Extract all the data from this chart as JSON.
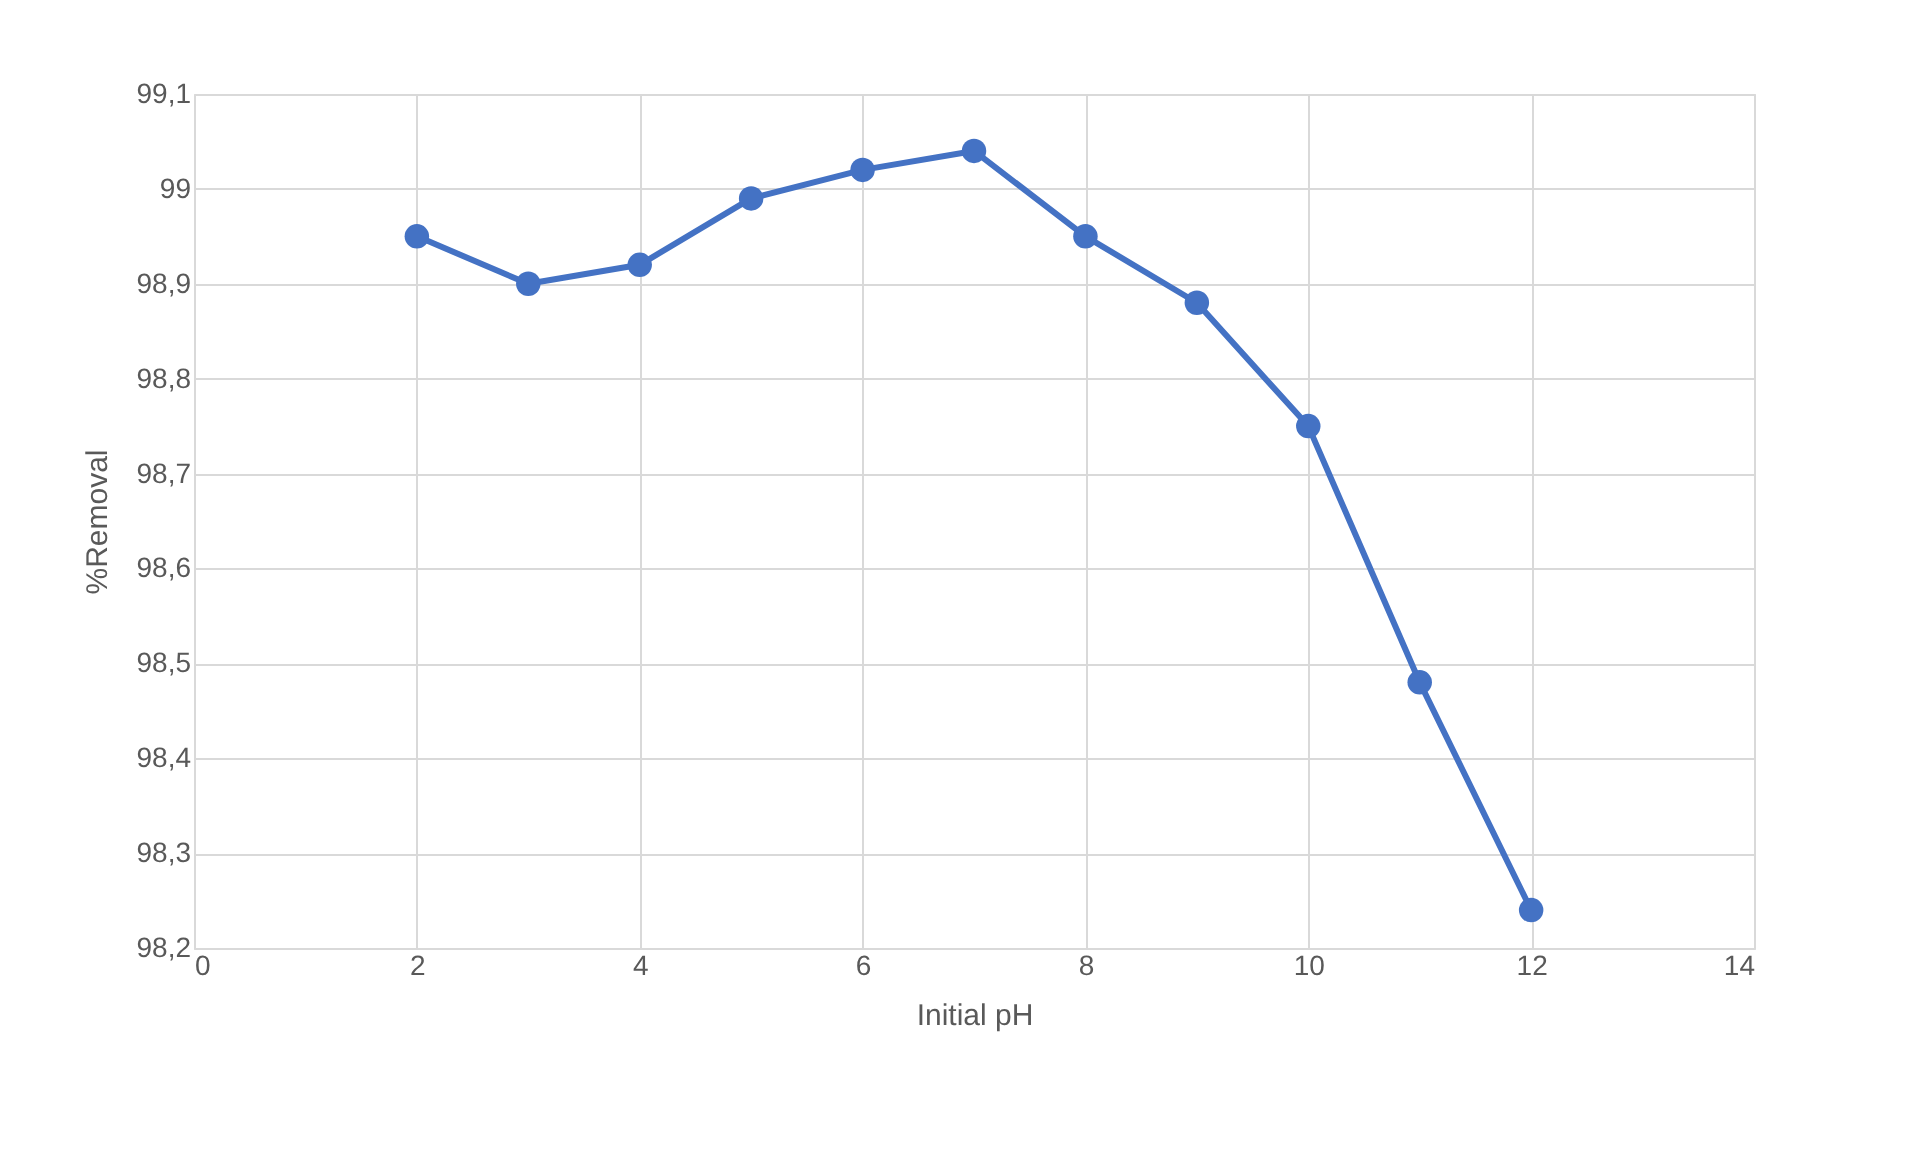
{
  "chart_data": {
    "type": "line",
    "xlabel": "Initial pH",
    "ylabel": "%Removal",
    "x": [
      2,
      3,
      4,
      5,
      6,
      7,
      8,
      9,
      10,
      11,
      12
    ],
    "series": [
      {
        "color": "#4472c4",
        "values": [
          98.95,
          98.9,
          98.92,
          98.99,
          99.02,
          99.04,
          98.95,
          98.88,
          98.75,
          98.48,
          98.24
        ]
      }
    ],
    "xlim": [
      0,
      14
    ],
    "xticks": [
      0,
      2,
      4,
      6,
      8,
      10,
      12,
      14
    ],
    "ylim": [
      98.2,
      99.1
    ],
    "yticks": [
      {
        "value": 98.2,
        "label": "98,2"
      },
      {
        "value": 98.3,
        "label": "98,3"
      },
      {
        "value": 98.4,
        "label": "98,4"
      },
      {
        "value": 98.5,
        "label": "98,5"
      },
      {
        "value": 98.6,
        "label": "98,6"
      },
      {
        "value": 98.7,
        "label": "98,7"
      },
      {
        "value": 98.8,
        "label": "98,8"
      },
      {
        "value": 98.9,
        "label": "98,9"
      },
      {
        "value": 99,
        "label": "99"
      },
      {
        "value": 99.1,
        "label": "99,1"
      }
    ],
    "grid": true,
    "marker": "circle",
    "line_style": "solid"
  }
}
